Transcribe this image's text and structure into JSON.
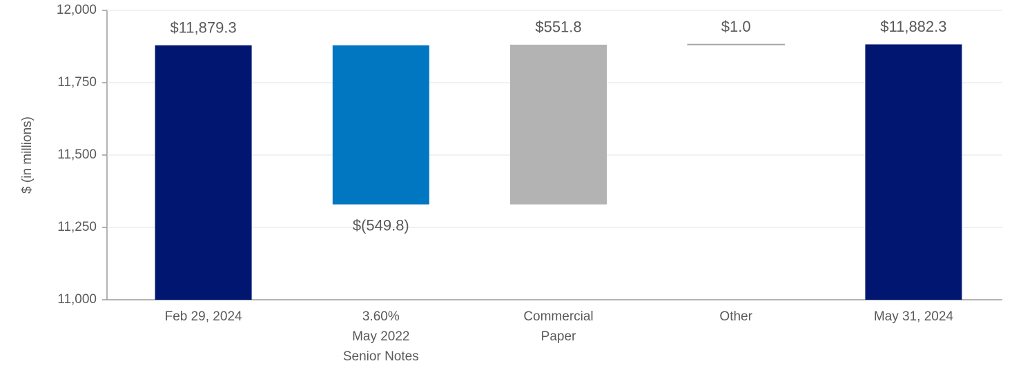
{
  "chart_data": {
    "type": "waterfall",
    "y_label": "$ (in millions)",
    "categories": [
      [
        "Feb 29, 2024"
      ],
      [
        "3.60%",
        "May 2022",
        "Senior Notes"
      ],
      [
        "Commercial",
        "Paper"
      ],
      [
        "Other"
      ],
      [
        "May 31, 2024"
      ]
    ],
    "values": [
      11879.3,
      -549.8,
      551.8,
      1.0,
      11882.3
    ],
    "value_labels": [
      "$11,879.3",
      "$(549.8)",
      "$551.8",
      "$1.0",
      "$11,882.3"
    ],
    "totals": [
      true,
      false,
      false,
      false,
      true
    ],
    "colors": [
      "#001670",
      "#0077c0",
      "#b3b3b3",
      "#a6a6a6",
      "#001670"
    ],
    "ylim": [
      11000,
      12000
    ],
    "yticks": [
      {
        "value": 11000,
        "label": "11,000"
      },
      {
        "value": 11250,
        "label": "11,250"
      },
      {
        "value": 11500,
        "label": "11,500"
      },
      {
        "value": 11750,
        "label": "11,750"
      },
      {
        "value": 12000,
        "label": "12,000"
      }
    ],
    "grid": true
  }
}
